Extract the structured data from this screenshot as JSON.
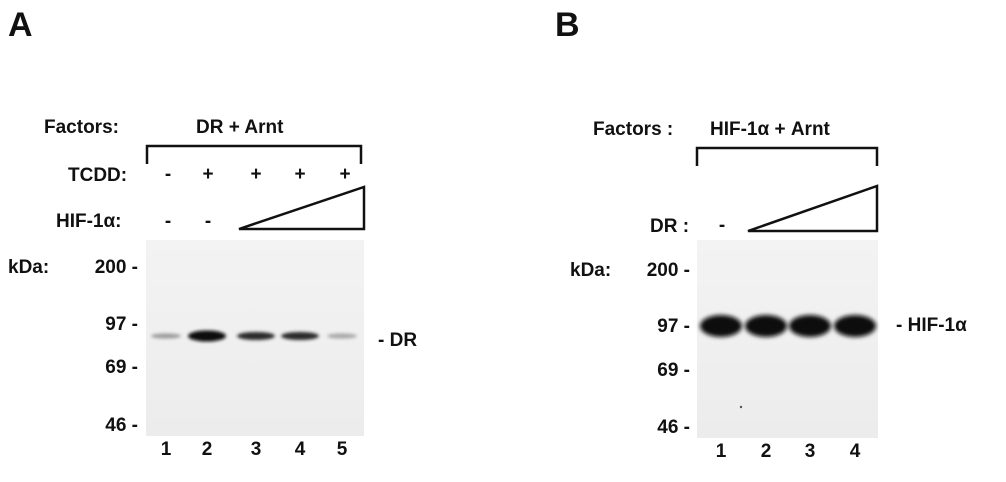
{
  "panel_a": {
    "letter": "A",
    "factors_label": "Factors:",
    "factors_value": "DR + Arnt",
    "tcdd_label": "TCDD:",
    "tcdd_marks": [
      "-",
      "+",
      "+",
      "+",
      "+"
    ],
    "hif_label": "HIF-1α:",
    "hif_marks": [
      "-",
      "-"
    ],
    "kda_label": "kDa:",
    "markers": [
      "200 -",
      "97 -",
      "69 -",
      "46 -"
    ],
    "band_label": "- DR",
    "lanes": [
      "1",
      "2",
      "3",
      "4",
      "5"
    ],
    "band_intensity": [
      0.35,
      1.0,
      0.85,
      0.85,
      0.3
    ]
  },
  "panel_b": {
    "letter": "B",
    "factors_label": "Factors :",
    "factors_value": "HIF-1α + Arnt",
    "dr_label": "DR :",
    "dr_marks": [
      "-"
    ],
    "kda_label": "kDa:",
    "markers": [
      "200 -",
      "97 -",
      "69 -",
      "46 -"
    ],
    "band_label": "- HIF-1α",
    "lanes": [
      "1",
      "2",
      "3",
      "4"
    ],
    "band_intensity": [
      1.0,
      1.0,
      1.0,
      1.0
    ]
  }
}
